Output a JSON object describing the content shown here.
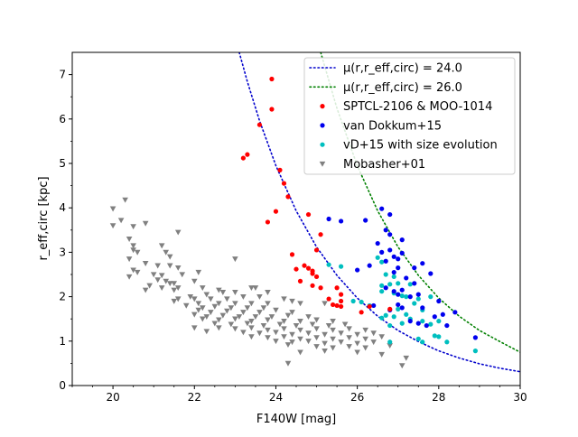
{
  "chart_data": {
    "type": "scatter",
    "title": "",
    "xlabel": "F140W [mag]",
    "ylabel": "r_eff,circ [kpc]",
    "xlim": [
      19,
      30
    ],
    "ylim": [
      0,
      7.5
    ],
    "xticks": [
      20,
      22,
      24,
      26,
      28,
      30
    ],
    "yticks": [
      0,
      1,
      2,
      3,
      4,
      5,
      6,
      7
    ],
    "legend_position": "top-right",
    "curves": [
      {
        "name": "μ(r,r_eff,circ) = 24.0",
        "color": "#0000cc",
        "style": "dotted",
        "x": [
          23.1,
          23.3,
          23.6,
          24.0,
          24.5,
          25.0,
          25.5,
          26.0,
          26.5,
          27.0,
          27.5,
          28.0,
          28.5,
          29.0,
          29.5,
          30.0
        ],
        "y": [
          7.5,
          6.84,
          5.96,
          4.95,
          3.93,
          3.12,
          2.48,
          1.97,
          1.56,
          1.24,
          0.99,
          0.78,
          0.62,
          0.49,
          0.39,
          0.31
        ]
      },
      {
        "name": "μ(r,r_eff,circ) = 26.0",
        "color": "#008000",
        "style": "dotted",
        "x": [
          25.1,
          25.5,
          26.0,
          26.5,
          27.0,
          27.5,
          28.0,
          28.5,
          29.0,
          29.5,
          30.0
        ],
        "y": [
          7.5,
          6.24,
          4.95,
          3.93,
          3.12,
          2.48,
          1.97,
          1.56,
          1.24,
          0.99,
          0.75
        ]
      }
    ],
    "series": [
      {
        "name": "SPTCL-2106 & MOO-1014",
        "color": "#ff0000",
        "marker": "circle",
        "points": [
          [
            23.9,
            6.9
          ],
          [
            23.6,
            5.87
          ],
          [
            23.9,
            6.22
          ],
          [
            23.2,
            5.12
          ],
          [
            23.3,
            5.2
          ],
          [
            24.1,
            4.85
          ],
          [
            24.2,
            4.55
          ],
          [
            24.3,
            4.25
          ],
          [
            24.0,
            3.92
          ],
          [
            23.8,
            3.68
          ],
          [
            24.8,
            3.85
          ],
          [
            25.1,
            3.4
          ],
          [
            25.0,
            3.05
          ],
          [
            24.4,
            2.95
          ],
          [
            24.5,
            2.62
          ],
          [
            24.7,
            2.7
          ],
          [
            24.8,
            2.64
          ],
          [
            24.9,
            2.58
          ],
          [
            25.0,
            2.45
          ],
          [
            24.9,
            2.52
          ],
          [
            24.6,
            2.35
          ],
          [
            25.1,
            2.2
          ],
          [
            24.9,
            2.25
          ],
          [
            25.3,
            1.95
          ],
          [
            25.5,
            2.2
          ],
          [
            25.6,
            2.05
          ],
          [
            25.4,
            1.82
          ],
          [
            25.5,
            1.8
          ],
          [
            25.6,
            1.78
          ],
          [
            26.1,
            1.65
          ],
          [
            26.3,
            1.78
          ],
          [
            26.8,
            1.72
          ],
          [
            25.6,
            1.9
          ]
        ]
      },
      {
        "name": "van Dokkum+15",
        "color": "#0000ee",
        "marker": "circle",
        "points": [
          [
            26.6,
            3.98
          ],
          [
            26.8,
            3.85
          ],
          [
            26.2,
            3.72
          ],
          [
            25.6,
            3.7
          ],
          [
            25.3,
            3.75
          ],
          [
            26.7,
            3.5
          ],
          [
            26.8,
            3.4
          ],
          [
            27.1,
            3.28
          ],
          [
            26.5,
            3.2
          ],
          [
            26.8,
            3.05
          ],
          [
            26.6,
            3.0
          ],
          [
            27.1,
            2.98
          ],
          [
            26.9,
            2.9
          ],
          [
            27.0,
            2.85
          ],
          [
            26.7,
            2.8
          ],
          [
            27.6,
            2.75
          ],
          [
            26.3,
            2.7
          ],
          [
            27.0,
            2.65
          ],
          [
            26.0,
            2.6
          ],
          [
            27.4,
            2.65
          ],
          [
            26.9,
            2.55
          ],
          [
            27.8,
            2.52
          ],
          [
            27.2,
            2.42
          ],
          [
            27.4,
            2.3
          ],
          [
            26.7,
            2.2
          ],
          [
            27.1,
            2.15
          ],
          [
            26.9,
            2.12
          ],
          [
            27.5,
            2.05
          ],
          [
            27.3,
            2.0
          ],
          [
            27.0,
            2.05
          ],
          [
            28.0,
            1.9
          ],
          [
            27.0,
            1.82
          ],
          [
            27.1,
            1.75
          ],
          [
            26.8,
            1.7
          ],
          [
            27.6,
            1.75
          ],
          [
            27.7,
            1.35
          ],
          [
            27.9,
            1.55
          ],
          [
            28.1,
            1.6
          ],
          [
            28.4,
            1.65
          ],
          [
            27.5,
            1.4
          ],
          [
            28.2,
            1.35
          ],
          [
            28.9,
            1.08
          ],
          [
            27.3,
            1.45
          ],
          [
            26.4,
            1.8
          ]
        ]
      },
      {
        "name": "vD+15 with size evolution",
        "color": "#00bfbf",
        "marker": "circle",
        "points": [
          [
            26.5,
            2.88
          ],
          [
            26.6,
            2.78
          ],
          [
            26.7,
            2.5
          ],
          [
            26.9,
            2.45
          ],
          [
            25.3,
            2.72
          ],
          [
            25.6,
            2.68
          ],
          [
            26.6,
            2.25
          ],
          [
            26.8,
            2.28
          ],
          [
            27.0,
            2.3
          ],
          [
            27.3,
            2.28
          ],
          [
            26.6,
            2.12
          ],
          [
            26.9,
            2.08
          ],
          [
            27.1,
            2.02
          ],
          [
            27.2,
            2.0
          ],
          [
            27.5,
            1.95
          ],
          [
            27.8,
            2.0
          ],
          [
            27.4,
            1.85
          ],
          [
            25.9,
            1.9
          ],
          [
            26.1,
            1.88
          ],
          [
            26.3,
            1.8
          ],
          [
            27.0,
            1.72
          ],
          [
            27.2,
            1.6
          ],
          [
            27.6,
            1.7
          ],
          [
            26.7,
            1.58
          ],
          [
            26.9,
            1.55
          ],
          [
            27.3,
            1.5
          ],
          [
            27.6,
            1.45
          ],
          [
            27.8,
            1.38
          ],
          [
            26.6,
            1.52
          ],
          [
            27.1,
            1.4
          ],
          [
            27.9,
            1.12
          ],
          [
            28.0,
            1.1
          ],
          [
            27.6,
            0.98
          ],
          [
            28.2,
            0.98
          ],
          [
            26.8,
            0.98
          ],
          [
            27.5,
            1.05
          ],
          [
            28.9,
            0.78
          ],
          [
            28.0,
            1.45
          ],
          [
            26.8,
            1.35
          ]
        ]
      },
      {
        "name": "Mobasher+01",
        "color": "#808080",
        "marker": "triangle-down",
        "points": [
          [
            20.3,
            4.18
          ],
          [
            20.0,
            3.98
          ],
          [
            20.2,
            3.72
          ],
          [
            20.0,
            3.6
          ],
          [
            20.8,
            3.65
          ],
          [
            20.5,
            3.58
          ],
          [
            21.6,
            3.45
          ],
          [
            20.4,
            3.3
          ],
          [
            20.5,
            3.15
          ],
          [
            20.5,
            3.05
          ],
          [
            21.2,
            3.15
          ],
          [
            20.6,
            3.0
          ],
          [
            21.3,
            3.0
          ],
          [
            21.4,
            2.9
          ],
          [
            23.0,
            2.85
          ],
          [
            20.4,
            2.85
          ],
          [
            20.8,
            2.75
          ],
          [
            21.1,
            2.7
          ],
          [
            21.4,
            2.7
          ],
          [
            20.5,
            2.6
          ],
          [
            21.6,
            2.65
          ],
          [
            20.6,
            2.55
          ],
          [
            21.0,
            2.5
          ],
          [
            21.2,
            2.48
          ],
          [
            21.7,
            2.5
          ],
          [
            22.1,
            2.55
          ],
          [
            20.4,
            2.45
          ],
          [
            21.1,
            2.38
          ],
          [
            21.3,
            2.35
          ],
          [
            21.5,
            2.3
          ],
          [
            22.0,
            2.35
          ],
          [
            21.4,
            2.3
          ],
          [
            20.9,
            2.25
          ],
          [
            21.6,
            2.2
          ],
          [
            20.8,
            2.15
          ],
          [
            21.2,
            2.2
          ],
          [
            21.5,
            2.15
          ],
          [
            22.2,
            2.2
          ],
          [
            22.6,
            2.15
          ],
          [
            23.4,
            2.2
          ],
          [
            23.5,
            2.2
          ],
          [
            21.9,
            2.0
          ],
          [
            22.3,
            2.05
          ],
          [
            22.7,
            2.1
          ],
          [
            23.0,
            2.1
          ],
          [
            23.8,
            2.1
          ],
          [
            21.6,
            1.95
          ],
          [
            22.0,
            1.95
          ],
          [
            22.4,
            1.95
          ],
          [
            22.8,
            1.95
          ],
          [
            23.2,
            2.0
          ],
          [
            23.6,
            2.0
          ],
          [
            24.2,
            1.95
          ],
          [
            24.4,
            1.9
          ],
          [
            21.5,
            1.9
          ],
          [
            22.1,
            1.85
          ],
          [
            22.6,
            1.85
          ],
          [
            23.0,
            1.85
          ],
          [
            23.4,
            1.85
          ],
          [
            23.8,
            1.85
          ],
          [
            24.6,
            1.85
          ],
          [
            25.2,
            1.85
          ],
          [
            21.8,
            1.8
          ],
          [
            22.2,
            1.75
          ],
          [
            22.5,
            1.78
          ],
          [
            22.9,
            1.75
          ],
          [
            23.3,
            1.75
          ],
          [
            23.7,
            1.75
          ],
          [
            24.0,
            1.7
          ],
          [
            22.1,
            1.7
          ],
          [
            22.4,
            1.65
          ],
          [
            22.8,
            1.68
          ],
          [
            23.2,
            1.65
          ],
          [
            23.6,
            1.65
          ],
          [
            24.4,
            1.65
          ],
          [
            22.0,
            1.6
          ],
          [
            22.3,
            1.55
          ],
          [
            22.7,
            1.58
          ],
          [
            23.1,
            1.55
          ],
          [
            23.5,
            1.55
          ],
          [
            23.9,
            1.55
          ],
          [
            24.3,
            1.58
          ],
          [
            24.8,
            1.55
          ],
          [
            22.2,
            1.5
          ],
          [
            22.6,
            1.48
          ],
          [
            23.0,
            1.5
          ],
          [
            23.4,
            1.45
          ],
          [
            23.8,
            1.48
          ],
          [
            24.2,
            1.45
          ],
          [
            24.6,
            1.45
          ],
          [
            25.0,
            1.48
          ],
          [
            25.4,
            1.45
          ],
          [
            22.5,
            1.4
          ],
          [
            22.9,
            1.38
          ],
          [
            23.3,
            1.4
          ],
          [
            23.7,
            1.35
          ],
          [
            24.1,
            1.38
          ],
          [
            24.5,
            1.35
          ],
          [
            24.9,
            1.38
          ],
          [
            25.3,
            1.35
          ],
          [
            25.7,
            1.38
          ],
          [
            22.6,
            1.3
          ],
          [
            23.0,
            1.28
          ],
          [
            23.4,
            1.3
          ],
          [
            23.8,
            1.25
          ],
          [
            24.2,
            1.28
          ],
          [
            24.6,
            1.25
          ],
          [
            25.0,
            1.28
          ],
          [
            25.4,
            1.25
          ],
          [
            25.8,
            1.28
          ],
          [
            26.2,
            1.25
          ],
          [
            23.2,
            1.2
          ],
          [
            23.6,
            1.18
          ],
          [
            24.0,
            1.2
          ],
          [
            24.4,
            1.15
          ],
          [
            24.8,
            1.18
          ],
          [
            25.2,
            1.15
          ],
          [
            25.6,
            1.18
          ],
          [
            26.0,
            1.15
          ],
          [
            26.4,
            1.18
          ],
          [
            22.3,
            1.22
          ],
          [
            22.0,
            1.3
          ],
          [
            23.4,
            1.1
          ],
          [
            23.8,
            1.08
          ],
          [
            24.2,
            1.1
          ],
          [
            24.6,
            1.05
          ],
          [
            25.0,
            1.08
          ],
          [
            25.4,
            1.05
          ],
          [
            25.8,
            1.08
          ],
          [
            26.2,
            1.05
          ],
          [
            26.6,
            1.1
          ],
          [
            24.0,
            1.0
          ],
          [
            24.4,
            0.98
          ],
          [
            24.8,
            1.0
          ],
          [
            25.2,
            0.95
          ],
          [
            25.6,
            0.98
          ],
          [
            26.0,
            0.95
          ],
          [
            26.4,
            0.98
          ],
          [
            25.0,
            0.88
          ],
          [
            25.4,
            0.85
          ],
          [
            25.8,
            0.88
          ],
          [
            26.2,
            0.85
          ],
          [
            26.8,
            0.9
          ],
          [
            24.3,
            0.92
          ],
          [
            25.2,
            0.78
          ],
          [
            26.0,
            0.75
          ],
          [
            26.6,
            0.7
          ],
          [
            24.6,
            0.75
          ],
          [
            27.2,
            0.62
          ],
          [
            27.1,
            0.45
          ],
          [
            24.3,
            0.5
          ]
        ]
      }
    ]
  }
}
